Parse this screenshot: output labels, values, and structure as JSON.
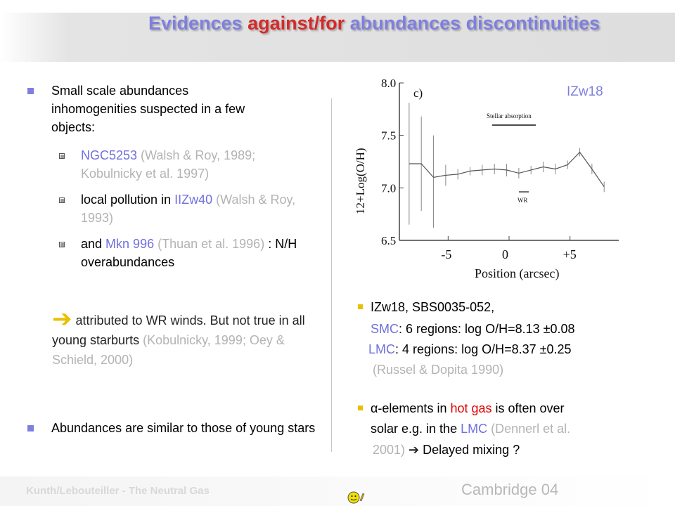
{
  "title": {
    "part1": "Evidences ",
    "part2": "against/for",
    "part3": " abundances discontinuities"
  },
  "left": {
    "b1": "Small scale abundances inhomogenities suspected in a few objects:",
    "s1_blue": "NGC5253",
    "s1_grey": " (Walsh & Roy, 1989; Kobulnicky et al. 1997)",
    "s2_black": "local pollution in ",
    "s2_blue": "IIZw40",
    "s2_grey": " (Walsh & Roy, 1993)",
    "s3_black": "and ",
    "s3_blue": "Mkn 996",
    "s3_grey": " (Thuan et al. 1996)",
    "s3_tail": " : N/H overabundances",
    "arrow": "➔",
    "p2_black": " attributed to WR winds. But not true in all young starburts",
    "p2_grey": " (Kobulnicky, 1999; Oey & Schield, 2000)",
    "b2": "Abundances are similar to those of young stars"
  },
  "plot": {
    "panel_label": "c)",
    "object_label": "IZw18",
    "stellar_label": "Stellar absorption",
    "wr_label": "WR",
    "ylabel": "12+Log(O/H)",
    "xlabel": "Position (arcsec)",
    "ytick_labels": [
      "8.0",
      "7.5",
      "7.0",
      "6.5"
    ],
    "xtick_labels": [
      "-5",
      "0",
      "+5"
    ]
  },
  "chart_data": {
    "type": "line",
    "xlabel": "Position (arcsec)",
    "ylabel": "12+Log(O/H)",
    "ylim": [
      6.5,
      8.0
    ],
    "xlim": [
      -9,
      9
    ],
    "x": [
      -8.2,
      -7.2,
      -6.2,
      -5.2,
      -4.2,
      -3.2,
      -2.2,
      -1.2,
      -0.2,
      0.8,
      1.8,
      2.8,
      3.8,
      4.8,
      5.8,
      6.8,
      7.8
    ],
    "y": [
      7.23,
      7.23,
      7.1,
      7.12,
      7.13,
      7.16,
      7.17,
      7.18,
      7.17,
      7.14,
      7.17,
      7.2,
      7.18,
      7.22,
      7.34,
      7.18,
      7.01
    ],
    "yerr_up": [
      0.58,
      0.45,
      0.4,
      0.1,
      0.05,
      0.04,
      0.05,
      0.05,
      0.06,
      0.05,
      0.04,
      0.05,
      0.05,
      0.04,
      0.04,
      0.05,
      0.05
    ],
    "yerr_down": [
      0.58,
      0.45,
      0.48,
      0.1,
      0.05,
      0.04,
      0.05,
      0.05,
      0.06,
      0.05,
      0.04,
      0.05,
      0.05,
      0.04,
      0.04,
      0.05,
      0.05
    ],
    "annotations": [
      "c)",
      "Stellar absorption",
      "WR",
      "IZw18"
    ]
  },
  "right": {
    "r1a": "IZw18, SBS0035-052,",
    "r1b_blue": "SMC",
    "r1b_black": ": 6 regions: log O/H=8.13 ±0.08",
    "r1c_blue": "LMC",
    "r1c_black": ": 4 regions: log O/H=8.37 ±0.25",
    "r1d_grey": "(Russel & Dopita 1990)",
    "r2a_black": "α-elements in ",
    "r2a_red": "hot gas",
    "r2a_tail": " is often over",
    "r2b_black": "solar e.g. in the ",
    "r2b_blue": "LMC",
    "r2b_grey": " (Dennerl et al.",
    "r2c_grey": "2001)",
    "r2c_arrow": " ➔ ",
    "r2c_black": "Delayed mixing ?"
  },
  "footer": {
    "left": "Kunth/Lebouteiller - The Neutral Gas",
    "right": "Cambridge 04"
  }
}
